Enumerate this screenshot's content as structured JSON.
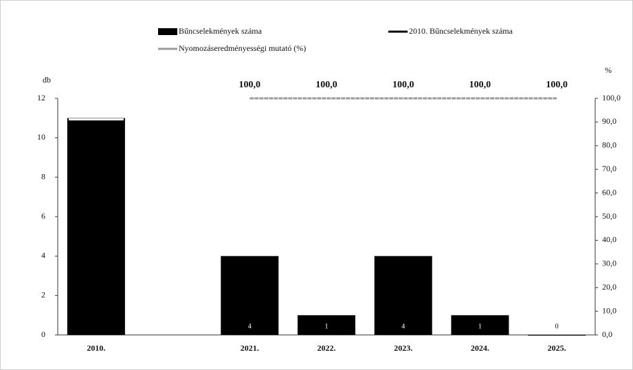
{
  "chart_data": {
    "type": "bar",
    "categories": [
      "2010.",
      null,
      "2021.",
      "2022.",
      "2023.",
      "2024.",
      "2025."
    ],
    "y_label": "db",
    "y2_label": "%",
    "ylim": [
      0,
      12
    ],
    "yticks": [
      0,
      2,
      4,
      6,
      8,
      10,
      12
    ],
    "y2lim": [
      0,
      100
    ],
    "y2ticks": [
      {
        "value": 0,
        "label": "0,0"
      },
      {
        "value": 10,
        "label": "10,0"
      },
      {
        "value": 20,
        "label": "20,0"
      },
      {
        "value": 30,
        "label": "30,0"
      },
      {
        "value": 40,
        "label": "40,0"
      },
      {
        "value": 50,
        "label": "50,0"
      },
      {
        "value": 60,
        "label": "60,0"
      },
      {
        "value": 70,
        "label": "70,0"
      },
      {
        "value": 80,
        "label": "80,0"
      },
      {
        "value": 90,
        "label": "90,0"
      },
      {
        "value": 100,
        "label": "100,0"
      }
    ],
    "series": [
      {
        "name": "Bűncselekmények száma",
        "type": "bar",
        "color": "#000000",
        "values": [
          11,
          null,
          4,
          1,
          4,
          1,
          0
        ],
        "value_labels": [
          null,
          null,
          "4",
          "1",
          "4",
          "1",
          "0"
        ]
      },
      {
        "name": "2010. Bűncselekmények száma",
        "type": "line",
        "color": "#000000",
        "values": [
          11,
          null,
          null,
          null,
          null,
          null,
          null
        ]
      },
      {
        "name": "Nyomozáseredményességi mutató (%)",
        "type": "line",
        "axis": "y2",
        "color": "#9a9a9a",
        "values": [
          null,
          null,
          100,
          100,
          100,
          100,
          100
        ],
        "value_labels": [
          null,
          null,
          "100,0",
          "100,0",
          "100,0",
          "100,0",
          "100,0"
        ]
      }
    ]
  }
}
